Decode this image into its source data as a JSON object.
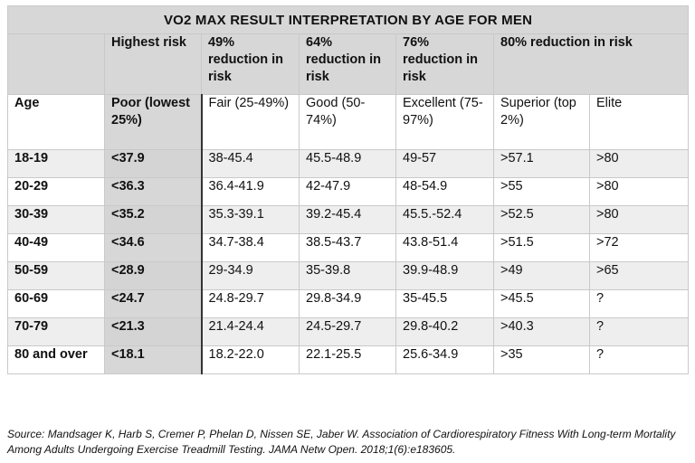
{
  "title": "VO2 MAX RESULT INTERPRETATION BY AGE FOR MEN",
  "risk_band": [
    "",
    "Highest risk",
    "49% reduction in risk",
    "64% reduction in risk",
    "76% reduction in risk",
    "80% reduction in risk"
  ],
  "headers": [
    "Age",
    "Poor (lowest 25%)",
    "Fair (25-49%)",
    "Good (50-74%)",
    "Excellent (75-97%)",
    "Superior (top 2%)",
    "Elite"
  ],
  "rows": [
    [
      "18-19",
      "<37.9",
      "38-45.4",
      "45.5-48.9",
      "49-57",
      ">57.1",
      ">80"
    ],
    [
      "20-29",
      "<36.3",
      "36.4-41.9",
      "42-47.9",
      "48-54.9",
      ">55",
      ">80"
    ],
    [
      "30-39",
      "<35.2",
      "35.3-39.1",
      "39.2-45.4",
      "45.5.-52.4",
      ">52.5",
      ">80"
    ],
    [
      "40-49",
      "<34.6",
      "34.7-38.4",
      "38.5-43.7",
      "43.8-51.4",
      ">51.5",
      ">72"
    ],
    [
      "50-59",
      "<28.9",
      "29-34.9",
      "35-39.8",
      "39.9-48.9",
      ">49",
      ">65"
    ],
    [
      "60-69",
      "<24.7",
      "24.8-29.7",
      "29.8-34.9",
      "35-45.5",
      ">45.5",
      "?"
    ],
    [
      "70-79",
      "<21.3",
      "21.4-24.4",
      "24.5-29.7",
      "29.8-40.2",
      ">40.3",
      "?"
    ],
    [
      "80 and over",
      "<18.1",
      "18.2-22.0",
      "22.1-25.5",
      "25.6-34.9",
      ">35",
      "?"
    ]
  ],
  "source": "Source: Mandsager K, Harb S, Cremer P, Phelan D, Nissen SE, Jaber W. Association of Cardiorespiratory Fitness With Long-term Mortality Among Adults Undergoing Exercise Treadmill Testing. JAMA Netw Open. 2018;1(6):e183605.",
  "colors": {
    "header_gray": "#d7d7d7",
    "row_alt": "#eeeeee",
    "border": "#c9c9c9",
    "separator": "#333333"
  }
}
